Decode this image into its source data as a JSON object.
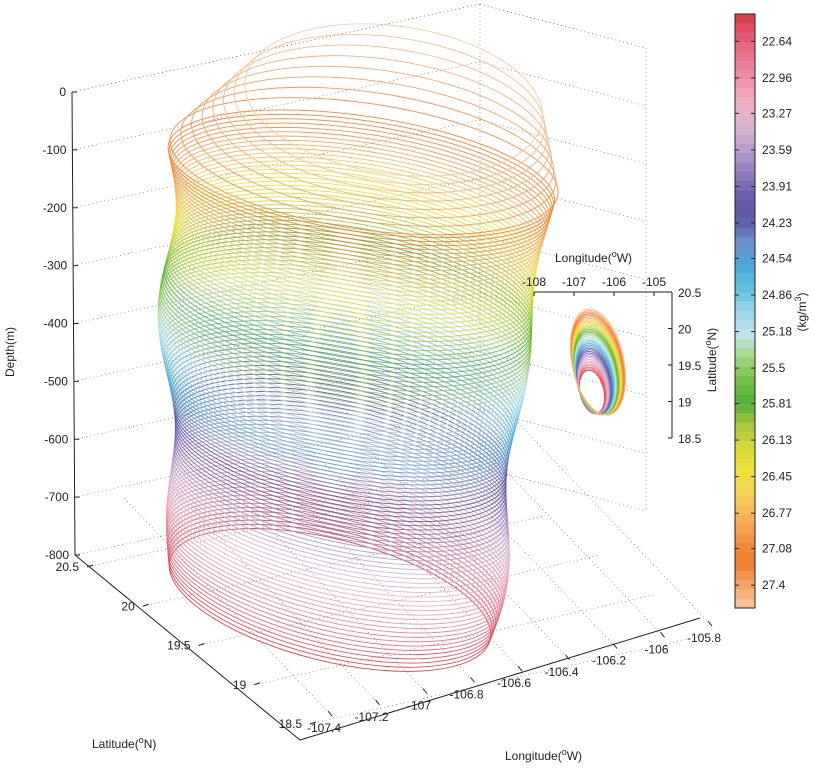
{
  "chart_data": {
    "type": "3d-contour",
    "main": {
      "depth_axis": {
        "label": "Depth(m)",
        "ticks": [
          0,
          -100,
          -200,
          -300,
          -400,
          -500,
          -600,
          -700,
          -800
        ],
        "range": [
          -800,
          0
        ]
      },
      "latitude_axis": {
        "label": "Latitude(",
        "label_sup": "o",
        "label_end": "N)",
        "ticks": [
          20.5,
          20,
          19.5,
          19,
          18.5
        ],
        "range": [
          18.5,
          20.5
        ]
      },
      "longitude_axis": {
        "label": "Longitude(",
        "label_sup": "o",
        "label_end": "W)",
        "ticks": [
          -107.4,
          -107.2,
          -107,
          -106.8,
          -106.6,
          -106.4,
          -106.2,
          -106,
          -105.8
        ],
        "range": [
          -107.4,
          -105.8
        ]
      },
      "grid": true
    },
    "inset": {
      "type": "contour-projection",
      "longitude_axis": {
        "label": "Longitude(",
        "label_sup": "o",
        "label_end": "W)",
        "ticks": [
          -108,
          -107,
          -106,
          -105
        ],
        "range": [
          -108,
          -105
        ]
      },
      "latitude_axis": {
        "label": "Latitude(",
        "label_sup": "o",
        "label_end": "N)",
        "ticks": [
          20.5,
          20,
          19.5,
          19,
          18.5
        ],
        "range": [
          18.5,
          20.5
        ]
      }
    },
    "colorbar": {
      "label": "(kg/m",
      "label_sup": "3",
      "label_end": ")",
      "ticks": [
        22.64,
        22.96,
        23.27,
        23.59,
        23.91,
        24.23,
        24.54,
        24.86,
        25.18,
        25.5,
        25.81,
        26.13,
        26.45,
        26.77,
        27.08,
        27.4
      ],
      "range": [
        22.4,
        27.6
      ],
      "colors": [
        "#d63a47",
        "#e35a70",
        "#ea7a92",
        "#ee97ad",
        "#eeb1c4",
        "#d7b3d3",
        "#b79bcb",
        "#8f7cbb",
        "#6a5ca9",
        "#5a5aa6",
        "#6d8fcb",
        "#4aa9d6",
        "#63bedf",
        "#9bd3e6",
        "#bfe3ee",
        "#a7d585",
        "#78c04a",
        "#54ae3a",
        "#a8c83c",
        "#d6d93a",
        "#f0e23b",
        "#f4d05a",
        "#f6b25a",
        "#f29244",
        "#ef7a2a",
        "#f2a46a",
        "#f7c89a"
      ]
    }
  }
}
